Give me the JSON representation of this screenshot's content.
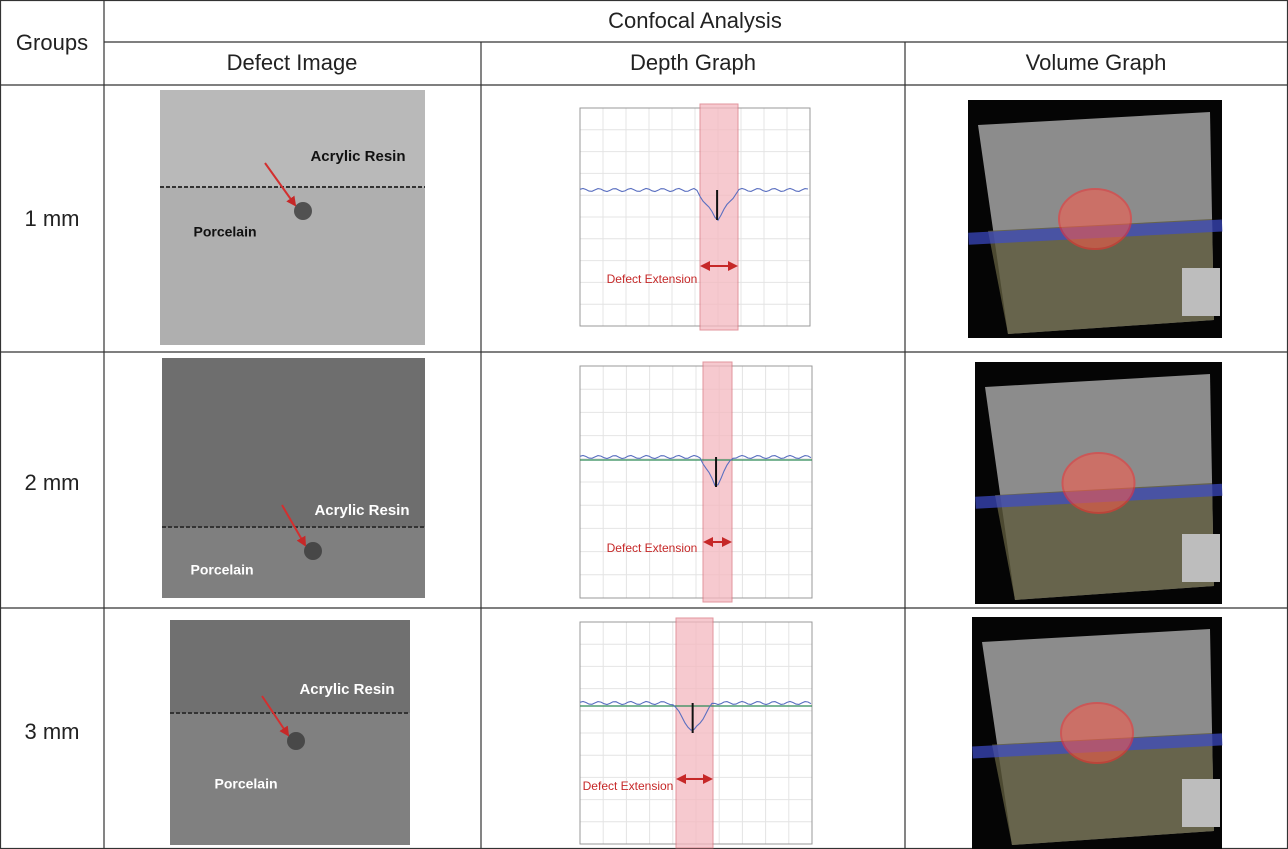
{
  "table": {
    "title": "Confocal Analysis",
    "header": [
      "Groups",
      "Defect Image",
      "Depth Graph",
      "Volume Graph"
    ],
    "rows": [
      {
        "group": "1 mm",
        "defect_image": {
          "upper_label": "Acrylic Resin",
          "lower_label": "Porcelain"
        },
        "depth_graph": {
          "annotation": "Defect Extension"
        }
      },
      {
        "group": "2 mm",
        "defect_image": {
          "upper_label": "Acrylic Resin",
          "lower_label": "Porcelain"
        },
        "depth_graph": {
          "annotation": "Defect Extension"
        }
      },
      {
        "group": "3 mm",
        "defect_image": {
          "upper_label": "Acrylic Resin",
          "lower_label": "Porcelain"
        },
        "depth_graph": {
          "annotation": "Defect Extension"
        }
      }
    ]
  }
}
